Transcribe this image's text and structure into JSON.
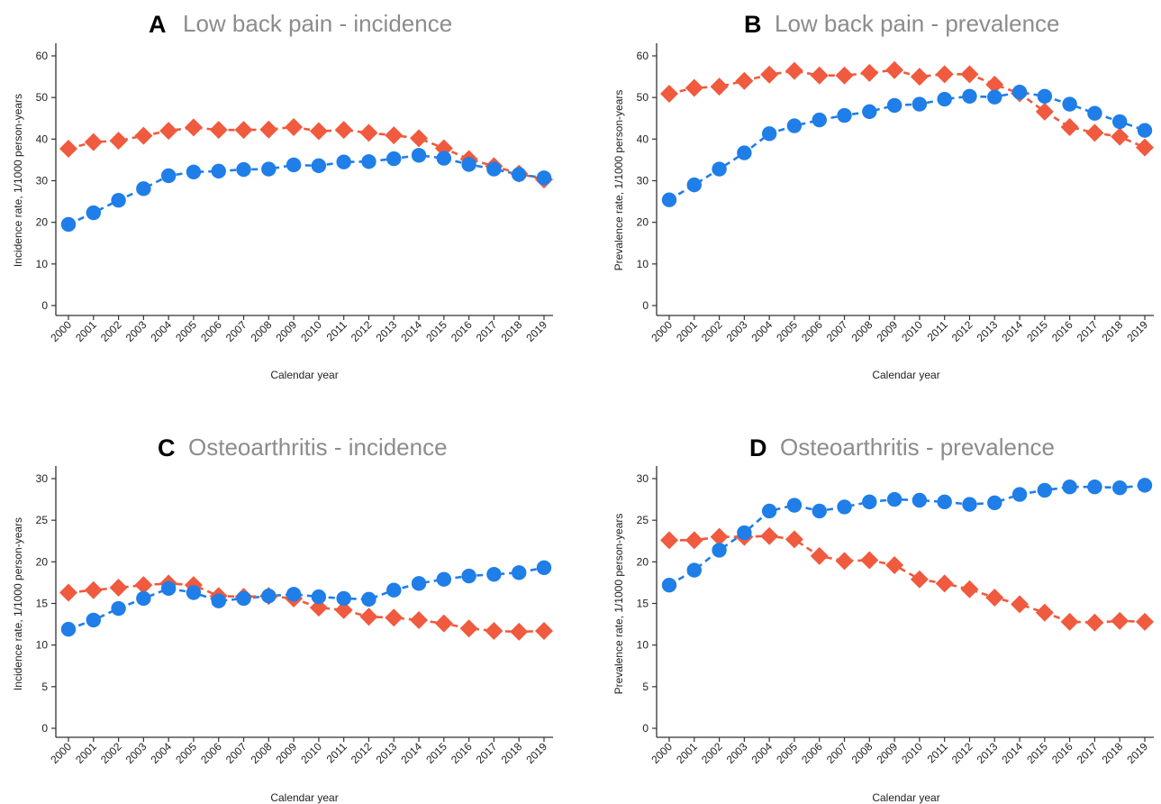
{
  "colors": {
    "blue": "#1f7ee8",
    "red": "#f05a3e",
    "title_gray": "#8c8c8c"
  },
  "chart_data": [
    {
      "type": "line",
      "panel": "A",
      "title": "Low back pain - incidence",
      "xlabel": "Calendar year",
      "ylabel": "Incidence rate, 1/1000 person-years",
      "ylim": [
        0,
        60
      ],
      "yticks": [
        0,
        10,
        20,
        30,
        40,
        50,
        60
      ],
      "categories": [
        "2000",
        "2001",
        "2002",
        "2003",
        "2004",
        "2005",
        "2006",
        "2007",
        "2008",
        "2009",
        "2010",
        "2011",
        "2012",
        "2013",
        "2014",
        "2015",
        "2016",
        "2017",
        "2018",
        "2019"
      ],
      "grid": false,
      "series": [
        {
          "marker": "circle",
          "color": "#1f7ee8",
          "values": [
            19.5,
            22.3,
            25.3,
            28.1,
            31.2,
            32.1,
            32.3,
            32.7,
            32.8,
            33.8,
            33.6,
            34.5,
            34.6,
            35.3,
            36.1,
            35.4,
            33.9,
            32.8,
            31.5,
            30.7
          ]
        },
        {
          "marker": "diamond",
          "color": "#f05a3e",
          "values": [
            37.7,
            39.3,
            39.6,
            40.8,
            42.0,
            42.8,
            42.2,
            42.2,
            42.3,
            42.9,
            41.9,
            42.2,
            41.5,
            40.9,
            40.2,
            37.8,
            35.2,
            33.5,
            31.7,
            30.3
          ]
        }
      ]
    },
    {
      "type": "line",
      "panel": "B",
      "title": "Low back pain - prevalence",
      "xlabel": "Calendar year",
      "ylabel": "Prevalence rate, 1/1000 person-years",
      "ylim": [
        0,
        60
      ],
      "yticks": [
        0,
        10,
        20,
        30,
        40,
        50,
        60
      ],
      "categories": [
        "2000",
        "2001",
        "2002",
        "2003",
        "2004",
        "2005",
        "2006",
        "2007",
        "2008",
        "2009",
        "2010",
        "2011",
        "2012",
        "2013",
        "2014",
        "2015",
        "2016",
        "2017",
        "2018",
        "2019"
      ],
      "grid": false,
      "series": [
        {
          "marker": "circle",
          "color": "#1f7ee8",
          "values": [
            25.4,
            29.0,
            32.8,
            36.7,
            41.3,
            43.2,
            44.6,
            45.7,
            46.6,
            48.1,
            48.4,
            49.6,
            50.3,
            50.1,
            51.3,
            50.3,
            48.4,
            46.2,
            44.2,
            42.1
          ]
        },
        {
          "marker": "diamond",
          "color": "#f05a3e",
          "values": [
            50.9,
            52.3,
            52.6,
            54.0,
            55.5,
            56.4,
            55.3,
            55.3,
            55.9,
            56.6,
            55.0,
            55.6,
            55.6,
            53.1,
            51.0,
            46.6,
            42.9,
            41.5,
            40.6,
            38.0
          ]
        }
      ]
    },
    {
      "type": "line",
      "panel": "C",
      "title": "Osteoarthritis - incidence",
      "xlabel": "Calendar year",
      "ylabel": "Incidence rate, 1/1000 person-years",
      "ylim": [
        0,
        30
      ],
      "yticks": [
        0,
        5,
        10,
        15,
        20,
        25,
        30
      ],
      "categories": [
        "2000",
        "2001",
        "2002",
        "2003",
        "2004",
        "2005",
        "2006",
        "2007",
        "2008",
        "2009",
        "2010",
        "2011",
        "2012",
        "2013",
        "2014",
        "2015",
        "2016",
        "2017",
        "2018",
        "2019"
      ],
      "grid": false,
      "series": [
        {
          "marker": "circle",
          "color": "#1f7ee8",
          "values": [
            11.9,
            13.0,
            14.4,
            15.6,
            16.8,
            16.3,
            15.3,
            15.6,
            15.9,
            16.1,
            15.8,
            15.6,
            15.5,
            16.6,
            17.4,
            17.9,
            18.3,
            18.5,
            18.7,
            19.3
          ]
        },
        {
          "marker": "diamond",
          "color": "#f05a3e",
          "values": [
            16.3,
            16.6,
            16.9,
            17.2,
            17.4,
            17.2,
            15.9,
            15.8,
            15.9,
            15.6,
            14.5,
            14.2,
            13.4,
            13.3,
            13.0,
            12.6,
            12.0,
            11.7,
            11.6,
            11.7
          ]
        }
      ]
    },
    {
      "type": "line",
      "panel": "D",
      "title": "Osteoarthritis - prevalence",
      "xlabel": "Calendar year",
      "ylabel": "Prevalence rate, 1/1000 person-years",
      "ylim": [
        0,
        30
      ],
      "yticks": [
        0,
        5,
        10,
        15,
        20,
        25,
        30
      ],
      "categories": [
        "2000",
        "2001",
        "2002",
        "2003",
        "2004",
        "2005",
        "2006",
        "2007",
        "2008",
        "2009",
        "2010",
        "2011",
        "2012",
        "2013",
        "2014",
        "2015",
        "2016",
        "2017",
        "2018",
        "2019"
      ],
      "grid": false,
      "series": [
        {
          "marker": "circle",
          "color": "#1f7ee8",
          "values": [
            17.2,
            19.0,
            21.4,
            23.5,
            26.1,
            26.8,
            26.1,
            26.6,
            27.2,
            27.5,
            27.4,
            27.2,
            26.9,
            27.1,
            28.1,
            28.6,
            29.0,
            29.0,
            28.9,
            29.2
          ]
        },
        {
          "marker": "diamond",
          "color": "#f05a3e",
          "values": [
            22.6,
            22.6,
            23.0,
            23.0,
            23.1,
            22.7,
            20.7,
            20.1,
            20.2,
            19.6,
            17.9,
            17.4,
            16.7,
            15.7,
            14.9,
            13.9,
            12.8,
            12.7,
            12.9,
            12.8
          ]
        }
      ]
    }
  ]
}
